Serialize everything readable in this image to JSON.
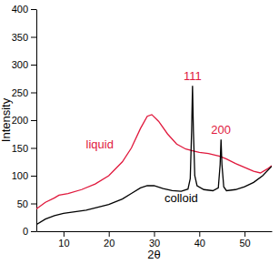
{
  "chart_data": {
    "type": "line",
    "x_label": "2θ",
    "y_label": "Intensity",
    "xlim": [
      4,
      56
    ],
    "ylim": [
      0,
      400
    ],
    "xticks": [
      10,
      20,
      30,
      40,
      50
    ],
    "yticks": [
      0,
      50,
      100,
      150,
      200,
      250,
      300,
      350,
      400
    ],
    "grid": false,
    "series": [
      {
        "name": "liquid",
        "color": "#e0183c",
        "x": [
          4,
          6,
          8,
          9,
          11,
          14,
          17,
          20,
          23,
          25,
          27,
          28.5,
          29.5,
          31,
          33,
          35,
          37,
          38.5,
          40,
          42,
          44.5,
          46,
          48,
          50,
          52,
          53.5,
          55,
          56
        ],
        "values": [
          40,
          52,
          60,
          65,
          68,
          75,
          85,
          100,
          125,
          150,
          185,
          207,
          210,
          198,
          175,
          157,
          148,
          145,
          142,
          140,
          135,
          130,
          122,
          115,
          108,
          105,
          112,
          118
        ]
      },
      {
        "name": "colloid",
        "color": "#000000",
        "x": [
          4,
          6,
          8,
          10,
          15,
          20,
          23,
          25,
          27,
          28.5,
          30,
          32,
          34,
          36,
          37.5,
          38,
          38.3,
          38.5,
          38.7,
          39,
          39.5,
          41,
          43,
          44.2,
          44.6,
          44.8,
          45,
          45.4,
          46,
          48,
          50,
          52,
          54,
          56
        ],
        "values": [
          12,
          22,
          28,
          32,
          38,
          48,
          58,
          68,
          78,
          82,
          82,
          77,
          73,
          72,
          76,
          95,
          180,
          262,
          180,
          100,
          82,
          75,
          73,
          78,
          120,
          165,
          120,
          80,
          73,
          75,
          80,
          88,
          100,
          117
        ]
      }
    ],
    "annotations": [
      {
        "text": "111",
        "x": 38.5,
        "y": 272,
        "color": "#e0183c"
      },
      {
        "text": "200",
        "x": 44.8,
        "y": 175,
        "color": "#e0183c"
      },
      {
        "text": "liquid",
        "x": 18,
        "y": 150,
        "color": "#e0183c"
      },
      {
        "text": "colloid",
        "x": 36,
        "y": 52,
        "color": "#000000"
      }
    ]
  }
}
